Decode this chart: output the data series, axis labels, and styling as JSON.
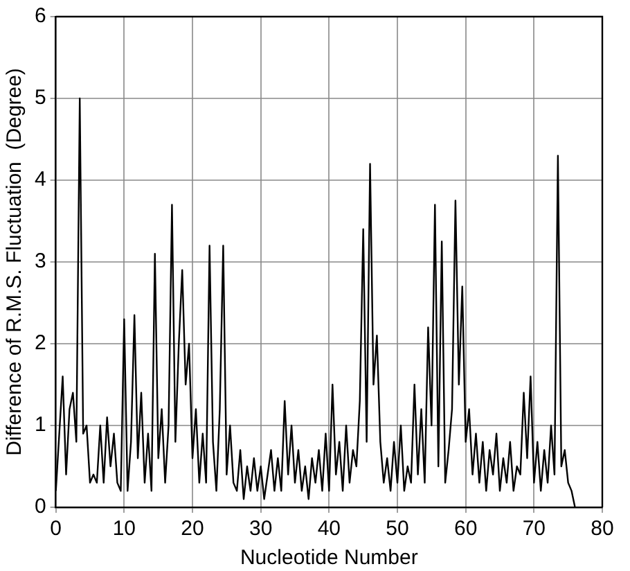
{
  "chart_data": {
    "type": "line",
    "xlabel": "Nucleotide Number",
    "ylabel": "Difference of R.M.S. Fluctuation  (Degree)",
    "xlim": [
      0,
      80
    ],
    "ylim": [
      0,
      6
    ],
    "xticks": [
      0,
      10,
      20,
      30,
      40,
      50,
      60,
      70,
      80
    ],
    "yticks": [
      0,
      1,
      2,
      3,
      4,
      5,
      6
    ],
    "grid": true,
    "legend": false,
    "marker": "none",
    "line_style": "solid",
    "series": [
      {
        "color": "#000000",
        "x": [
          0,
          0.5,
          1,
          1.5,
          2,
          2.5,
          3,
          3.5,
          4,
          4.5,
          5,
          5.5,
          6,
          6.5,
          7,
          7.5,
          8,
          8.5,
          9,
          9.5,
          10,
          10.5,
          11,
          11.5,
          12,
          12.5,
          13,
          13.5,
          14,
          14.5,
          15,
          15.5,
          16,
          16.5,
          17,
          17.5,
          18,
          18.5,
          19,
          19.5,
          20,
          20.5,
          21,
          21.5,
          22,
          22.5,
          23,
          23.5,
          24,
          24.5,
          25,
          25.5,
          26,
          26.5,
          27,
          27.5,
          28,
          28.5,
          29,
          29.5,
          30,
          30.5,
          31,
          31.5,
          32,
          32.5,
          33,
          33.5,
          34,
          34.5,
          35,
          35.5,
          36,
          36.5,
          37,
          37.5,
          38,
          38.5,
          39,
          39.5,
          40,
          40.5,
          41,
          41.5,
          42,
          42.5,
          43,
          43.5,
          44,
          44.5,
          45,
          45.5,
          46,
          46.5,
          47,
          47.5,
          48,
          48.5,
          49,
          49.5,
          50,
          50.5,
          51,
          51.5,
          52,
          52.5,
          53,
          53.5,
          54,
          54.5,
          55,
          55.5,
          56,
          56.5,
          57,
          57.5,
          58,
          58.5,
          59,
          59.5,
          60,
          60.5,
          61,
          61.5,
          62,
          62.5,
          63,
          63.5,
          64,
          64.5,
          65,
          65.5,
          66,
          66.5,
          67,
          67.5,
          68,
          68.5,
          69,
          69.5,
          70,
          70.5,
          71,
          71.5,
          72,
          72.5,
          73,
          73.5,
          74,
          74.5,
          75,
          75.5,
          76
        ],
        "values": [
          0.2,
          0.9,
          1.6,
          0.4,
          1.2,
          1.4,
          0.8,
          5.0,
          0.9,
          1.0,
          0.3,
          0.4,
          0.3,
          1.0,
          0.3,
          1.1,
          0.5,
          0.9,
          0.3,
          0.2,
          2.3,
          0.2,
          0.8,
          2.35,
          0.6,
          1.4,
          0.3,
          0.9,
          0.2,
          3.1,
          0.6,
          1.2,
          0.3,
          1.0,
          3.7,
          0.8,
          2.0,
          2.9,
          1.5,
          2.0,
          0.6,
          1.2,
          0.3,
          0.9,
          0.3,
          3.2,
          0.8,
          0.2,
          1.2,
          3.2,
          0.4,
          1.0,
          0.3,
          0.2,
          0.7,
          0.1,
          0.5,
          0.2,
          0.6,
          0.2,
          0.5,
          0.1,
          0.4,
          0.7,
          0.2,
          0.6,
          0.2,
          1.3,
          0.4,
          1.0,
          0.3,
          0.7,
          0.2,
          0.5,
          0.1,
          0.6,
          0.3,
          0.7,
          0.2,
          0.9,
          0.2,
          1.5,
          0.4,
          0.8,
          0.2,
          1.0,
          0.3,
          0.7,
          0.5,
          1.3,
          3.4,
          0.8,
          4.2,
          1.5,
          2.1,
          0.8,
          0.3,
          0.6,
          0.2,
          0.8,
          0.3,
          1.0,
          0.2,
          0.5,
          0.3,
          1.5,
          0.4,
          1.2,
          0.3,
          2.2,
          1.0,
          3.7,
          0.5,
          3.25,
          0.3,
          0.7,
          1.2,
          3.75,
          1.5,
          2.7,
          0.8,
          1.2,
          0.4,
          0.9,
          0.3,
          0.8,
          0.2,
          0.7,
          0.4,
          0.9,
          0.2,
          0.6,
          0.3,
          0.8,
          0.2,
          0.5,
          0.4,
          1.4,
          0.6,
          1.6,
          0.3,
          0.8,
          0.2,
          0.7,
          0.3,
          1.0,
          0.4,
          4.3,
          0.5,
          0.7,
          0.3,
          0.2,
          0.0
        ]
      }
    ]
  }
}
